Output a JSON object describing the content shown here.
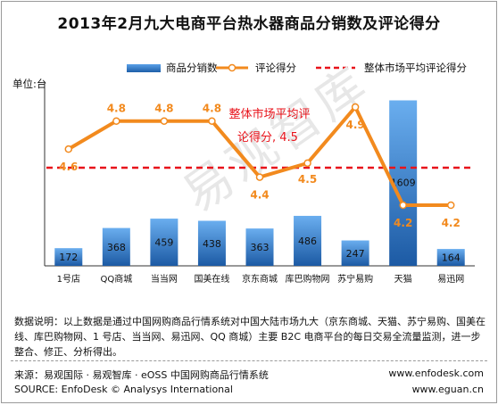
{
  "title": "2013年2月九大电商平台热水器商品分销数及评论得分",
  "unit_label": "单位:台",
  "legend": {
    "bar": "商品分销数",
    "line": "评论得分",
    "avg": "整体市场平均评论得分"
  },
  "avg_annotation": {
    "line1": "整体市场平均评",
    "line2": "论得分, 4.5"
  },
  "note": "数据说明：以上数据是通过中国网购商品行情系统对中国大陆市场九大（京东商城、天猫、苏宁易购、国美在线、库巴购物网、1 号店、当当网、易迅网、QQ 商城）主要 B2C 电商平台的每日交易全流量监测，进一步整合、修正、分析得出。",
  "source": {
    "cn": "来源：易观国际 · 易观智库 · eOSS 中国网购商品行情系统",
    "en": "SOURCE: EnfoDesk © Analysys International",
    "site1": "www.enfodesk.com",
    "site2": "www.eguan.cn"
  },
  "watermark": "易观智库",
  "colors": {
    "bar": "#2e78c8",
    "line": "#f28a1e",
    "avg": "#e8131b",
    "score_label": "#f28a1e",
    "annotation": "#e8131b"
  },
  "chart_data": {
    "type": "bar",
    "categories": [
      "1号店",
      "QQ商城",
      "当当网",
      "国美在线",
      "京东商城",
      "库巴购物网",
      "苏宁易购",
      "天猫",
      "易迅网"
    ],
    "series": [
      {
        "name": "商品分销数",
        "type": "bar",
        "axis": "left",
        "values": [
          172,
          368,
          459,
          438,
          363,
          486,
          247,
          1609,
          164
        ]
      },
      {
        "name": "评论得分",
        "type": "line",
        "axis": "right",
        "values": [
          4.6,
          4.8,
          4.8,
          4.8,
          4.4,
          4.5,
          4.9,
          4.2,
          4.2
        ]
      },
      {
        "name": "整体市场平均评论得分",
        "type": "reference-line",
        "axis": "right",
        "value": 4.5
      }
    ],
    "score_labels": [
      "4.6",
      "4.8",
      "4.8",
      "4.8",
      "4.4",
      "4.5",
      "4.9",
      "4.2",
      "4.2"
    ],
    "ylabel": "单位:台",
    "legend_position": "top-right",
    "grid": false
  }
}
